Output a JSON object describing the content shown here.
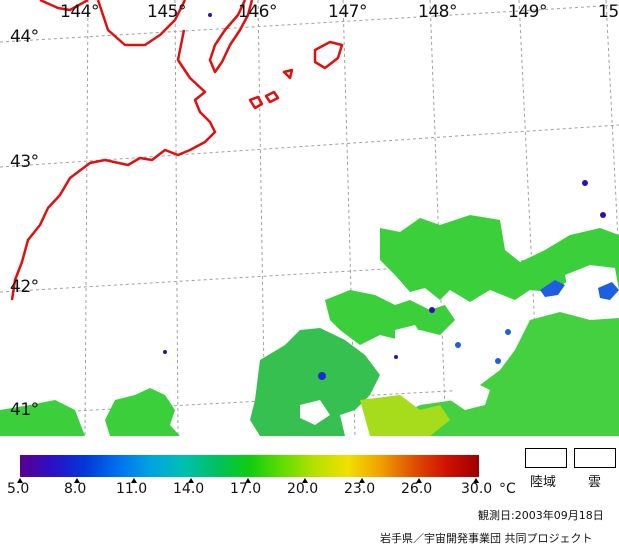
{
  "map": {
    "longitude_labels": [
      "144°",
      "145°",
      "146°",
      "147°",
      "148°",
      "149°",
      "15"
    ],
    "latitude_labels": [
      "44°",
      "43°",
      "42°",
      "41°"
    ]
  },
  "colorbar": {
    "ticks": [
      "5.0",
      "8.0",
      "11.0",
      "14.0",
      "17.0",
      "20.0",
      "23.0",
      "26.0",
      "30.0"
    ],
    "unit": "°C",
    "colors": [
      "#5a0090",
      "#2a0fc8",
      "#003ad8",
      "#0070f0",
      "#00a4e0",
      "#00c0b0",
      "#00c060",
      "#10cc10",
      "#60dd00",
      "#b8e000",
      "#f0e000",
      "#f0a000",
      "#e05000",
      "#d01000",
      "#a00000"
    ]
  },
  "legend": {
    "land_label": "陸域",
    "cloud_label": "雲"
  },
  "footer": {
    "observation_date": "観測日:2003年09月18日",
    "credit": "岩手県／宇宙開発事業団  共同プロジェクト"
  },
  "colors": {
    "coastline": "#e01010",
    "grid": "#a0a0a0",
    "sst_green": "#3ccf3c"
  }
}
